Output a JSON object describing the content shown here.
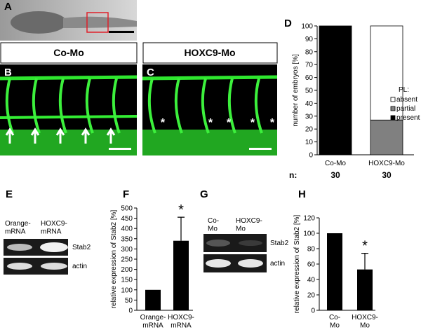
{
  "figure": {
    "panel_labels": [
      "A",
      "B",
      "C",
      "D",
      "E",
      "F",
      "G",
      "H"
    ],
    "image_headers": [
      "Co-Mo",
      "HOXC9-Mo"
    ],
    "c_markers": [
      "*",
      "*",
      "*",
      "*",
      "*"
    ],
    "gel_e": {
      "lanes": [
        "Orange-\nmRNA",
        "HOXC9-\nmRNA"
      ],
      "bands": [
        "Stab2",
        "actin"
      ]
    },
    "gel_g": {
      "lanes": [
        "Co-\nMo",
        "HOXC9-\nMo"
      ],
      "bands": [
        "Stab2",
        "actin"
      ]
    }
  },
  "chart_data": [
    {
      "type": "bar",
      "stacked": true,
      "ylabel": "number of embryos [%]",
      "categories": [
        "Co-Mo",
        "HOXC9-Mo"
      ],
      "ylim": [
        0,
        100
      ],
      "yticks": [
        0,
        10,
        20,
        30,
        40,
        50,
        60,
        70,
        80,
        90,
        100
      ],
      "legend_title": "PL:",
      "series": [
        {
          "name": "present",
          "color": "#000000",
          "values": [
            100,
            0
          ]
        },
        {
          "name": "partial",
          "color": "#808080",
          "values": [
            0,
            27
          ]
        },
        {
          "name": "absent",
          "color": "#ffffff",
          "values": [
            0,
            73
          ]
        }
      ],
      "n_label": "n:",
      "n": [
        30,
        30
      ]
    },
    {
      "type": "bar",
      "ylabel": "relative expression of Stab2 [%]",
      "categories": [
        "Orange-\nmRNA",
        "HOXC9-\nmRNA"
      ],
      "values": [
        100,
        340
      ],
      "errors": [
        null,
        115
      ],
      "color": "#000000",
      "ylim": [
        0,
        500
      ],
      "yticks": [
        0,
        50,
        100,
        150,
        200,
        250,
        300,
        350,
        400,
        450,
        500
      ],
      "annotations": [
        {
          "text": "*",
          "x": "HOXC9-\nmRNA"
        }
      ]
    },
    {
      "type": "bar",
      "ylabel": "relative expression of Stab2 [%]",
      "categories": [
        "Co-\nMo",
        "HOXC9-\nMo"
      ],
      "values": [
        100,
        53
      ],
      "errors": [
        null,
        21
      ],
      "color": "#000000",
      "ylim": [
        0,
        120
      ],
      "yticks": [
        0,
        20,
        40,
        60,
        80,
        100,
        120
      ],
      "annotations": [
        {
          "text": "*",
          "x": "HOXC9-\nMo"
        }
      ]
    }
  ]
}
